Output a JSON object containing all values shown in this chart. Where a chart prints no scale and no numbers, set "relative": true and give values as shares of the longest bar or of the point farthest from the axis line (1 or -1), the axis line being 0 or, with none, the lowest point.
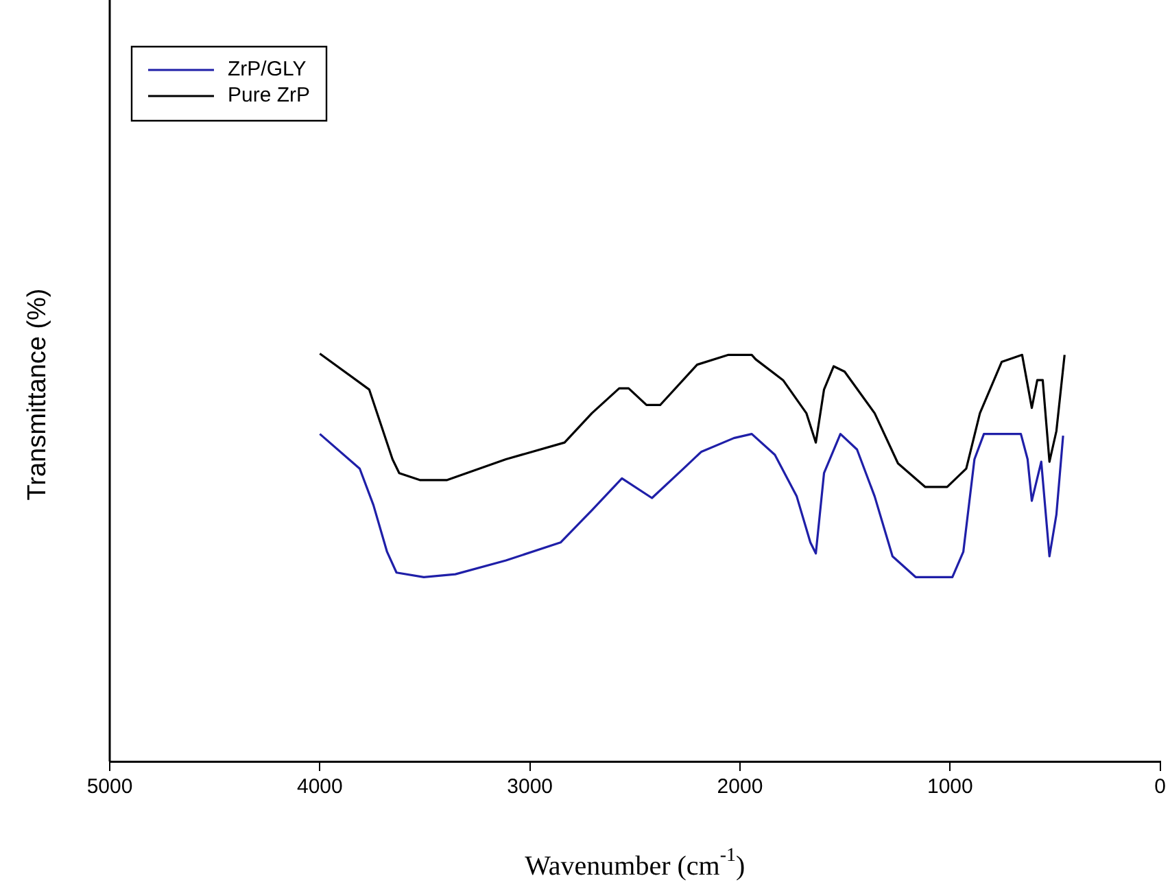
{
  "chart_data": {
    "type": "line",
    "relative": true,
    "xlabel": "Wavenumber (cm$^{-1}$)",
    "ylabel": "Transmittance (%)",
    "xlim": [
      5000,
      0
    ],
    "xticks": [
      5000,
      4000,
      3000,
      2000,
      1000,
      0
    ],
    "grid": false,
    "legend": "top left",
    "marker": "none",
    "line_style": "solid",
    "series": [
      {
        "name": "ZrP/GLY",
        "color": "#1f1fa8",
        "x": [
          4000,
          3810,
          3745,
          3680,
          3635,
          3505,
          3355,
          3114,
          2854,
          2705,
          2562,
          2419,
          2269,
          2185,
          2029,
          1944,
          1834,
          1730,
          1665,
          1639,
          1600,
          1522,
          1443,
          1359,
          1274,
          1164,
          989,
          937,
          884,
          839,
          663,
          631,
          611,
          566,
          527,
          494,
          462
        ],
        "values": [
          0.803,
          0.718,
          0.629,
          0.514,
          0.463,
          0.452,
          0.459,
          0.493,
          0.537,
          0.616,
          0.694,
          0.646,
          0.718,
          0.759,
          0.793,
          0.803,
          0.752,
          0.65,
          0.537,
          0.51,
          0.707,
          0.803,
          0.765,
          0.65,
          0.503,
          0.452,
          0.452,
          0.514,
          0.741,
          0.803,
          0.803,
          0.741,
          0.639,
          0.735,
          0.503,
          0.605,
          0.799
        ]
      },
      {
        "name": "Pure ZrP",
        "color": "#000000",
        "x": [
          4000,
          3765,
          3654,
          3622,
          3524,
          3394,
          3114,
          2835,
          2705,
          2575,
          2530,
          2445,
          2380,
          2204,
          2055,
          1944,
          1925,
          1795,
          1684,
          1639,
          1600,
          1554,
          1502,
          1359,
          1248,
          1118,
          1014,
          923,
          858,
          754,
          657,
          611,
          585,
          559,
          527,
          494,
          455
        ],
        "values": [
          1.0,
          0.912,
          0.741,
          0.707,
          0.69,
          0.69,
          0.741,
          0.782,
          0.854,
          0.915,
          0.915,
          0.874,
          0.874,
          0.973,
          0.997,
          0.997,
          0.986,
          0.935,
          0.854,
          0.782,
          0.912,
          0.969,
          0.956,
          0.854,
          0.731,
          0.673,
          0.673,
          0.718,
          0.854,
          0.98,
          0.997,
          0.867,
          0.935,
          0.935,
          0.735,
          0.81,
          0.997
        ]
      }
    ]
  }
}
